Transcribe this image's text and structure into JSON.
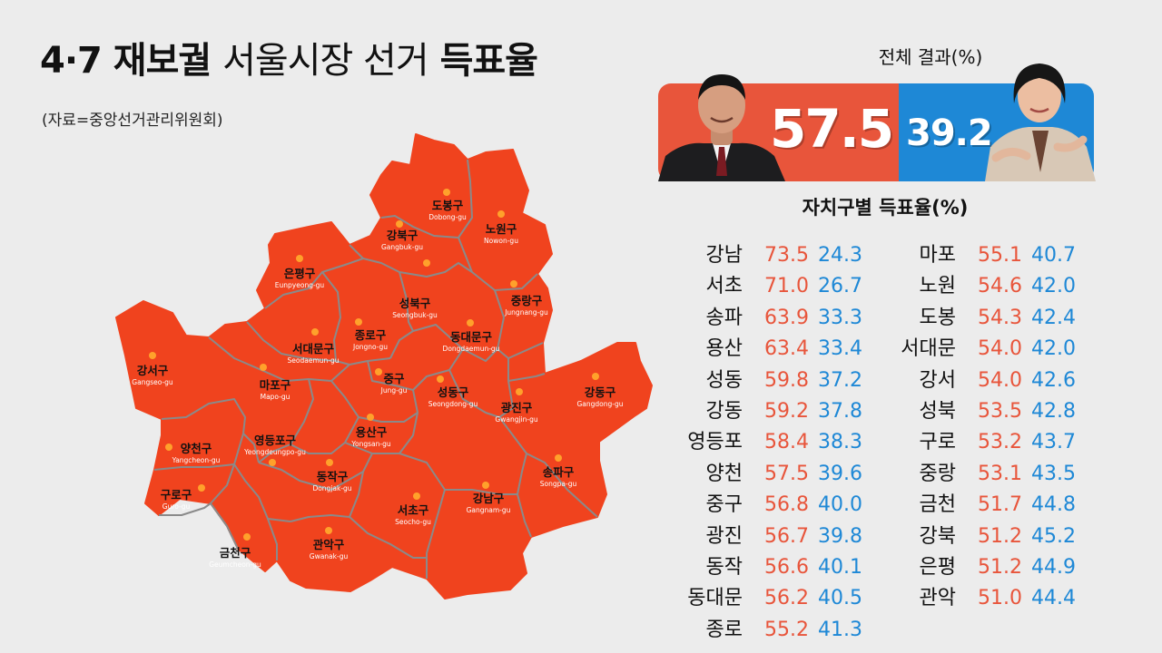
{
  "header": {
    "title_bold": "4·7 재보궐",
    "title_light": "서울시장 선거",
    "title_bold2": "득표율",
    "source": "(자료=중앙선거관리위원회)"
  },
  "overall": {
    "title": "전체 결과(%)",
    "oh_pct": "57.5",
    "park_pct": "39.2",
    "colors": {
      "oh": "#e8553b",
      "park": "#1e88d6"
    }
  },
  "district_results_title": "자치구별 득표율(%)",
  "district_results": {
    "left": [
      {
        "name": "강남",
        "oh": "73.5",
        "park": "24.3"
      },
      {
        "name": "서초",
        "oh": "71.0",
        "park": "26.7"
      },
      {
        "name": "송파",
        "oh": "63.9",
        "park": "33.3"
      },
      {
        "name": "용산",
        "oh": "63.4",
        "park": "33.4"
      },
      {
        "name": "성동",
        "oh": "59.8",
        "park": "37.2"
      },
      {
        "name": "강동",
        "oh": "59.2",
        "park": "37.8"
      },
      {
        "name": "영등포",
        "oh": "58.4",
        "park": "38.3"
      },
      {
        "name": "양천",
        "oh": "57.5",
        "park": "39.6"
      },
      {
        "name": "중구",
        "oh": "56.8",
        "park": "40.0"
      },
      {
        "name": "광진",
        "oh": "56.7",
        "park": "39.8"
      },
      {
        "name": "동작",
        "oh": "56.6",
        "park": "40.1"
      },
      {
        "name": "동대문",
        "oh": "56.2",
        "park": "40.5"
      },
      {
        "name": "종로",
        "oh": "55.2",
        "park": "41.3"
      }
    ],
    "right": [
      {
        "name": "마포",
        "oh": "55.1",
        "park": "40.7"
      },
      {
        "name": "노원",
        "oh": "54.6",
        "park": "42.0"
      },
      {
        "name": "도봉",
        "oh": "54.3",
        "park": "42.4"
      },
      {
        "name": "서대문",
        "oh": "54.0",
        "park": "42.0"
      },
      {
        "name": "강서",
        "oh": "54.0",
        "park": "42.6"
      },
      {
        "name": "성북",
        "oh": "53.5",
        "park": "42.8"
      },
      {
        "name": "구로",
        "oh": "53.2",
        "park": "43.7"
      },
      {
        "name": "중랑",
        "oh": "53.1",
        "park": "43.5"
      },
      {
        "name": "금천",
        "oh": "51.7",
        "park": "44.8"
      },
      {
        "name": "강북",
        "oh": "51.2",
        "park": "45.2"
      },
      {
        "name": "은평",
        "oh": "51.2",
        "park": "44.9"
      },
      {
        "name": "관악",
        "oh": "51.0",
        "park": "44.4"
      }
    ]
  },
  "map": {
    "fill_color": "#f0431e",
    "border_color": "#8a8a8a",
    "marker_color": "#ffa12b",
    "districts": [
      {
        "ko": "도봉구",
        "en": "Dobong-gu"
      },
      {
        "ko": "노원구",
        "en": "Nowon-gu"
      },
      {
        "ko": "강북구",
        "en": "Gangbuk-gu"
      },
      {
        "ko": "은평구",
        "en": "Eunpyeong-gu"
      },
      {
        "ko": "성북구",
        "en": "Seongbuk-gu"
      },
      {
        "ko": "중랑구",
        "en": "Jungnang-gu"
      },
      {
        "ko": "종로구",
        "en": "Jongno-gu"
      },
      {
        "ko": "서대문구",
        "en": "Seodaemun-gu"
      },
      {
        "ko": "동대문구",
        "en": "Dongdaemun-gu"
      },
      {
        "ko": "강서구",
        "en": "Gangseo-gu"
      },
      {
        "ko": "마포구",
        "en": "Mapo-gu"
      },
      {
        "ko": "중구",
        "en": "Jung-gu"
      },
      {
        "ko": "성동구",
        "en": "Seongdong-gu"
      },
      {
        "ko": "광진구",
        "en": "Gwangjin-gu"
      },
      {
        "ko": "강동구",
        "en": "Gangdong-gu"
      },
      {
        "ko": "용산구",
        "en": "Yongsan-gu"
      },
      {
        "ko": "영등포구",
        "en": "Yeongdeungpo-gu"
      },
      {
        "ko": "양천구",
        "en": "Yangcheon-gu"
      },
      {
        "ko": "동작구",
        "en": "Dongjak-gu"
      },
      {
        "ko": "송파구",
        "en": "Songpa-gu"
      },
      {
        "ko": "구로구",
        "en": "Guro-gu"
      },
      {
        "ko": "서초구",
        "en": "Seocho-gu"
      },
      {
        "ko": "강남구",
        "en": "Gangnam-gu"
      },
      {
        "ko": "관악구",
        "en": "Gwanak-gu"
      },
      {
        "ko": "금천구",
        "en": "Geumcheon-gu"
      }
    ]
  }
}
